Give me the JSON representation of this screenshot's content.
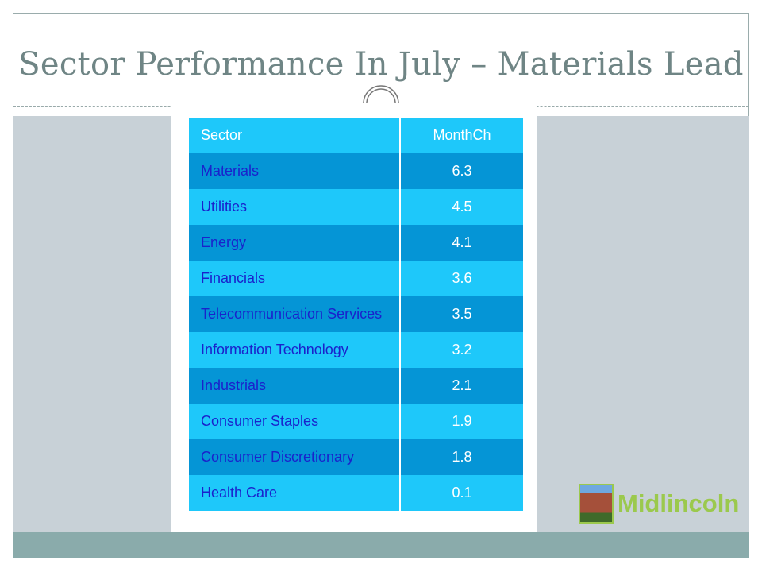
{
  "title": "Sector Performance In July – Materials Lead",
  "table": {
    "headers": [
      "Sector",
      "MonthCh"
    ],
    "rows": [
      [
        "Materials",
        "6.3"
      ],
      [
        "Utilities",
        "4.5"
      ],
      [
        "Energy",
        "4.1"
      ],
      [
        "Financials",
        "3.6"
      ],
      [
        "Telecommunication Services",
        "3.5"
      ],
      [
        "Information Technology",
        "3.2"
      ],
      [
        "Industrials",
        "2.1"
      ],
      [
        "Consumer Staples",
        "1.9"
      ],
      [
        "Consumer Discretionary",
        "1.8"
      ],
      [
        "Health Care",
        "0.1"
      ]
    ]
  },
  "logo": {
    "text": "Midlincoln"
  },
  "colors": {
    "header": "#1ec8fa",
    "dark_row": "#0595d6",
    "sector_text": "#1a22cc",
    "logo": "#9bc94d"
  }
}
